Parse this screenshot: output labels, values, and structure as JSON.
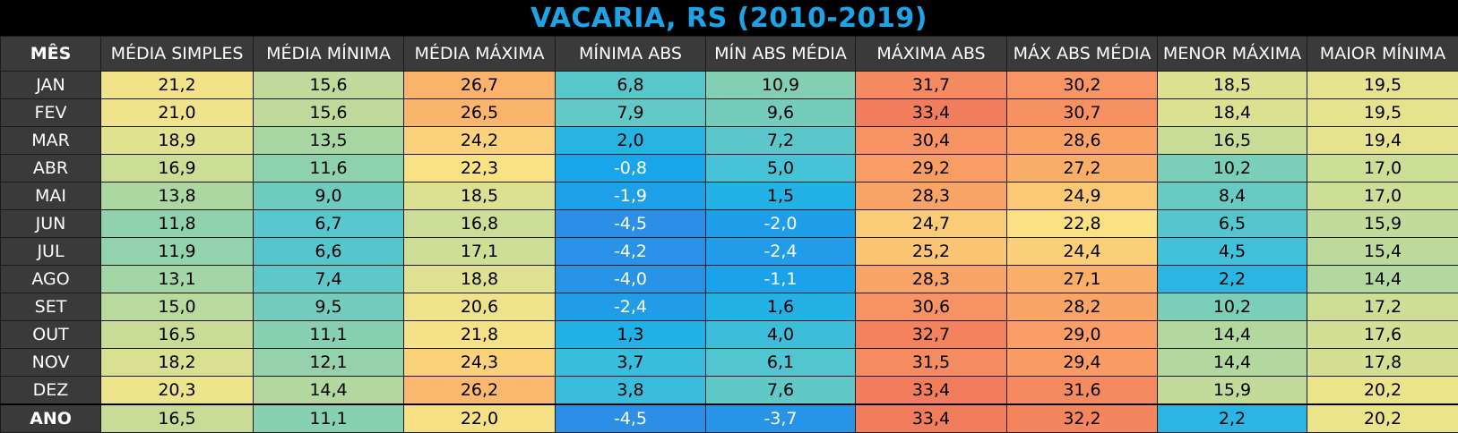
{
  "title": "VACARIA, RS (2010-2019)",
  "chart_data": {
    "type": "table",
    "title": "VACARIA, RS (2010-2019)",
    "columns": [
      "MÊS",
      "MÉDIA SIMPLES",
      "MÉDIA MÍNIMA",
      "MÉDIA MÁXIMA",
      "MÍNIMA ABS",
      "MÍN ABS MÉDIA",
      "MÁXIMA ABS",
      "MÁX ABS MÉDIA",
      "MENOR MÁXIMA",
      "MAIOR MÍNIMA"
    ],
    "rows": [
      {
        "label": "JAN",
        "values": [
          "21,2",
          "15,6",
          "26,7",
          "6,8",
          "10,9",
          "31,7",
          "30,2",
          "18,5",
          "19,5"
        ]
      },
      {
        "label": "FEV",
        "values": [
          "21,0",
          "15,6",
          "26,5",
          "7,9",
          "9,6",
          "33,4",
          "30,7",
          "18,4",
          "19,5"
        ]
      },
      {
        "label": "MAR",
        "values": [
          "18,9",
          "13,5",
          "24,2",
          "2,0",
          "7,2",
          "30,4",
          "28,6",
          "16,5",
          "19,4"
        ]
      },
      {
        "label": "ABR",
        "values": [
          "16,9",
          "11,6",
          "22,3",
          "-0,8",
          "5,0",
          "29,2",
          "27,2",
          "10,2",
          "17,0"
        ]
      },
      {
        "label": "MAI",
        "values": [
          "13,8",
          "9,0",
          "18,5",
          "-1,9",
          "1,5",
          "28,3",
          "24,9",
          "8,4",
          "17,0"
        ]
      },
      {
        "label": "JUN",
        "values": [
          "11,8",
          "6,7",
          "16,8",
          "-4,5",
          "-2,0",
          "24,7",
          "22,8",
          "6,5",
          "15,9"
        ]
      },
      {
        "label": "JUL",
        "values": [
          "11,9",
          "6,6",
          "17,1",
          "-4,2",
          "-2,4",
          "25,2",
          "24,4",
          "4,5",
          "15,4"
        ]
      },
      {
        "label": "AGO",
        "values": [
          "13,1",
          "7,4",
          "18,8",
          "-4,0",
          "-1,1",
          "28,3",
          "27,1",
          "2,2",
          "14,4"
        ]
      },
      {
        "label": "SET",
        "values": [
          "15,0",
          "9,5",
          "20,6",
          "-2,4",
          "1,6",
          "30,6",
          "28,2",
          "10,2",
          "17,2"
        ]
      },
      {
        "label": "OUT",
        "values": [
          "16,5",
          "11,1",
          "21,8",
          "1,3",
          "4,0",
          "32,7",
          "29,0",
          "14,4",
          "17,6"
        ]
      },
      {
        "label": "NOV",
        "values": [
          "18,2",
          "12,1",
          "24,3",
          "3,7",
          "6,1",
          "31,5",
          "29,4",
          "14,4",
          "17,8"
        ]
      },
      {
        "label": "DEZ",
        "values": [
          "20,3",
          "14,4",
          "26,2",
          "3,8",
          "7,6",
          "33,4",
          "31,6",
          "15,9",
          "20,2"
        ]
      },
      {
        "label": "ANO",
        "values": [
          "16,5",
          "11,1",
          "22,0",
          "-4,5",
          "-3,7",
          "33,4",
          "32,2",
          "2,2",
          "20,2"
        ]
      }
    ]
  }
}
